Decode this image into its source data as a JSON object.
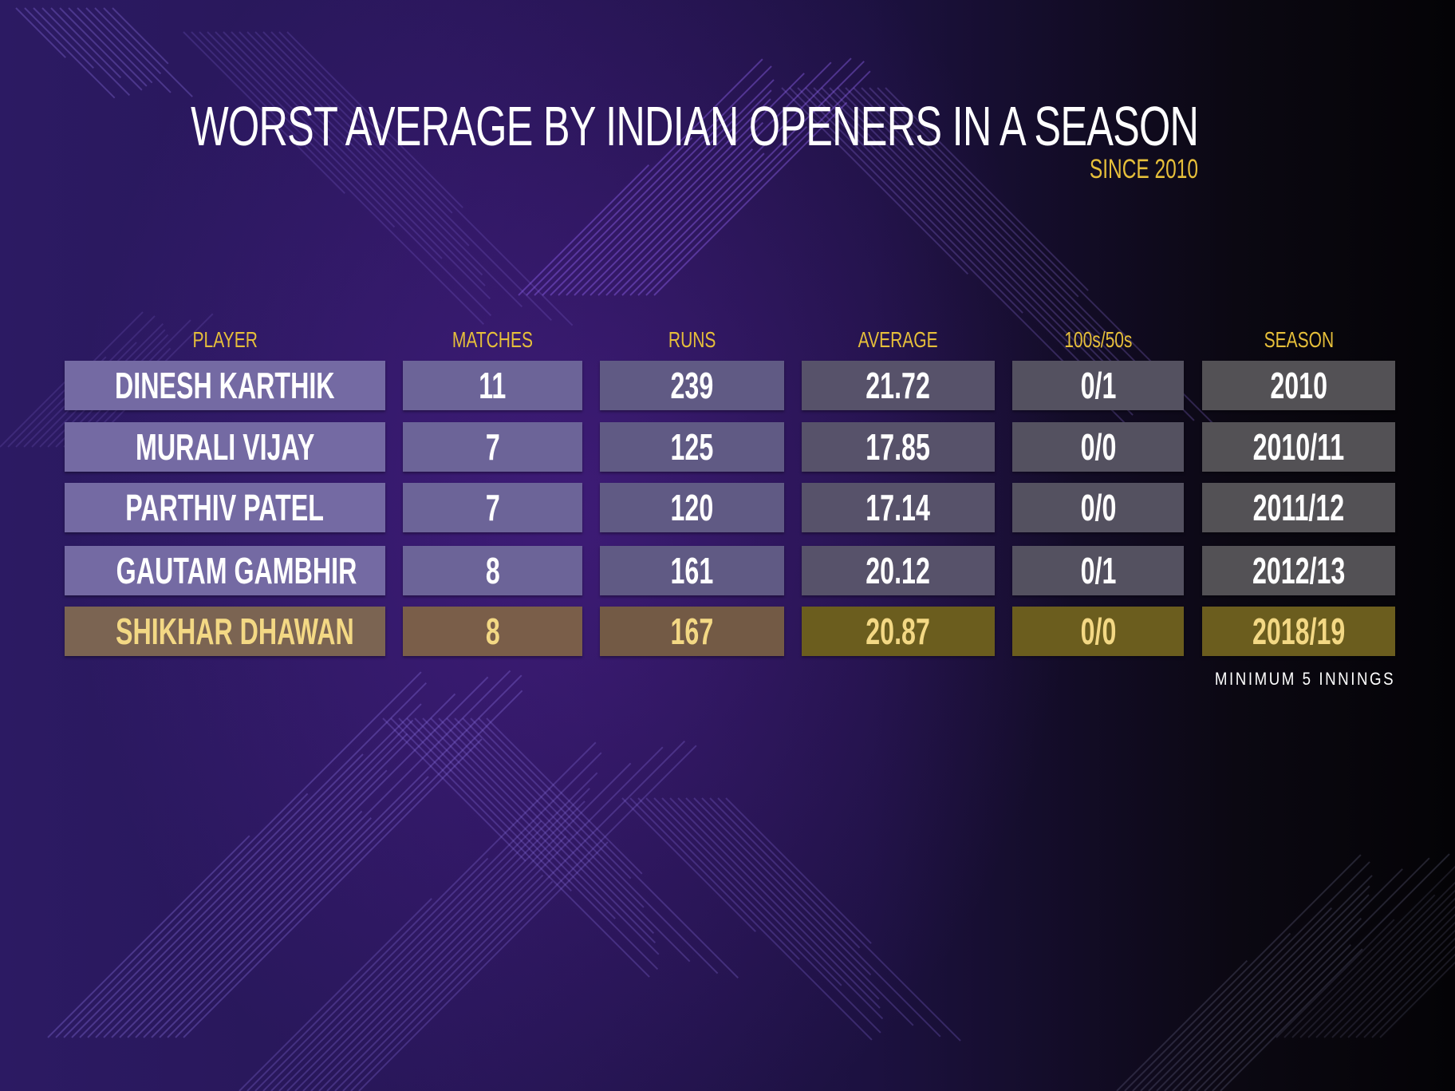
{
  "title": "WORST AVERAGE BY INDIAN OPENERS IN A SEASON",
  "subtitle": "SINCE 2010",
  "footnote": "MINIMUM 5 INNINGS",
  "colors": {
    "accent": "#e6bf3a",
    "highlight_row": "#6b5d1e",
    "background_left": "#2c1a63",
    "background_right": "#040306"
  },
  "chart_data": {
    "type": "table",
    "columns": [
      "PLAYER",
      "MATCHES",
      "RUNS",
      "AVERAGE",
      "100s/50s",
      "SEASON"
    ],
    "rows": [
      [
        "DINESH KARTHIK",
        "11",
        "239",
        "21.72",
        "0/1",
        "2010"
      ],
      [
        "MURALI VIJAY",
        "7",
        "125",
        "17.85",
        "0/0",
        "2010/11"
      ],
      [
        "PARTHIV PATEL",
        "7",
        "120",
        "17.14",
        "0/0",
        "2011/12"
      ],
      [
        "GAUTAM GAMBHIR",
        "8",
        "161",
        "20.12",
        "0/1",
        "2012/13"
      ],
      [
        "SHIKHAR DHAWAN",
        "8",
        "167",
        "20.87",
        "0/0",
        "2018/19"
      ]
    ],
    "highlighted_row": 4
  }
}
